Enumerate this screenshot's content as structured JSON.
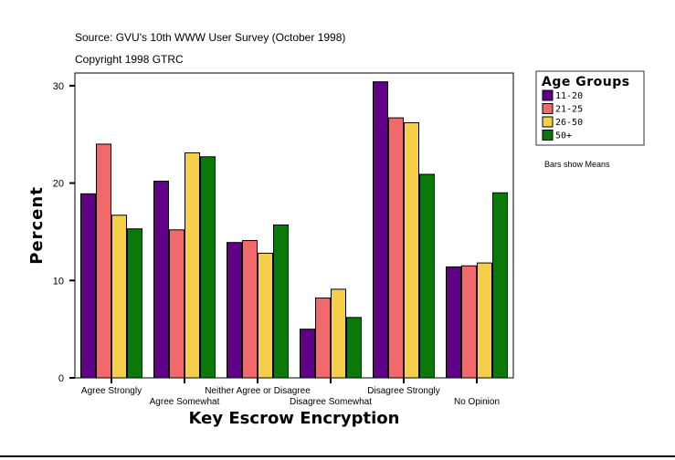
{
  "chart_data": {
    "type": "bar",
    "title": "Source: GVU's 10th WWW User Survey (October 1998)",
    "subtitle": "Copyright 1998 GTRC",
    "xlabel": "Key Escrow Encryption",
    "ylabel": "Percent",
    "ylim": [
      0,
      31.5
    ],
    "yticks": [
      0,
      10,
      20,
      30
    ],
    "grid": false,
    "legend_title": "Age Groups",
    "legend_placement": "right",
    "note": "Bars show Means",
    "categories": [
      "Agree Strongly",
      "Agree Somewhat",
      "Neither Agree or Disagree",
      "Disagree Somewhat",
      "Disagree Strongly",
      "No Opinion"
    ],
    "series": [
      {
        "name": "11-20",
        "color": "#5f0087",
        "values": [
          18.9,
          20.2,
          13.9,
          5.0,
          30.4,
          11.4
        ]
      },
      {
        "name": "21-25",
        "color": "#ef6b6b",
        "values": [
          24.0,
          15.2,
          14.1,
          8.2,
          26.7,
          11.5
        ]
      },
      {
        "name": "26-50",
        "color": "#f5cf48",
        "values": [
          16.7,
          23.1,
          12.8,
          9.1,
          26.2,
          11.8
        ]
      },
      {
        "name": "50+",
        "color": "#0a780a",
        "values": [
          15.3,
          22.7,
          15.7,
          6.2,
          20.9,
          19.0
        ]
      }
    ]
  }
}
